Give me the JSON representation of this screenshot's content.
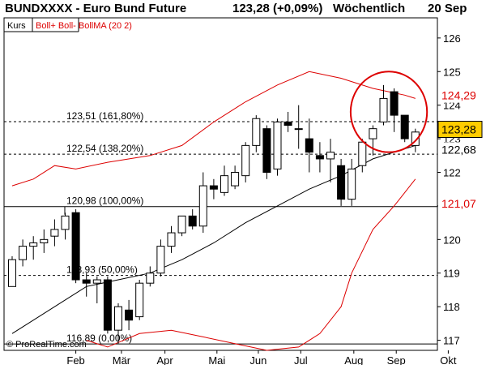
{
  "header": {
    "symbol": "BUNDXXXX - Euro Bund Future",
    "price_change": "123,28 (+0,09%)",
    "period": "Wöchentlich",
    "date": "20 Sep"
  },
  "legend": {
    "kurs": "Kurs",
    "boll": "Boll+ Boll- BollMA (20 2)"
  },
  "watermark": "© ProRealTime.com",
  "colors": {
    "candle": "#000000",
    "up_fill": "#ffffff",
    "down_fill": "#000000",
    "bollinger_band": "#dd0000",
    "bollinger_ma": "#000000",
    "highlight_ellipse": "#dd0000",
    "price_tag_bg": "#ffcc00"
  },
  "chart_data": {
    "type": "candlestick",
    "ylim": [
      116.7,
      126.6
    ],
    "y_ticks": [
      117,
      118,
      119,
      120,
      121,
      122,
      123,
      124,
      125,
      126
    ],
    "x_labels": [
      {
        "label": "Feb",
        "week": 7
      },
      {
        "label": "Mär",
        "week": 11.3
      },
      {
        "label": "Apr",
        "week": 15.4
      },
      {
        "label": "Mai",
        "week": 20.3
      },
      {
        "label": "Jun",
        "week": 24.2
      },
      {
        "label": "Jul",
        "week": 28.2
      },
      {
        "label": "Aug",
        "week": 33.2
      },
      {
        "label": "Sep",
        "week": 37.2
      },
      {
        "label": "Okt",
        "week": 42.1
      }
    ],
    "candles": [
      {
        "w": 1,
        "o": 118.6,
        "h": 119.5,
        "l": 118.6,
        "c": 119.4
      },
      {
        "w": 2,
        "o": 119.4,
        "h": 120.0,
        "l": 119.2,
        "c": 119.8
      },
      {
        "w": 3,
        "o": 119.8,
        "h": 120.1,
        "l": 119.4,
        "c": 119.9
      },
      {
        "w": 4,
        "o": 119.9,
        "h": 120.3,
        "l": 119.6,
        "c": 120.0
      },
      {
        "w": 5,
        "o": 120.1,
        "h": 120.6,
        "l": 119.8,
        "c": 120.3
      },
      {
        "w": 6,
        "o": 120.3,
        "h": 120.8,
        "l": 120.0,
        "c": 120.7
      },
      {
        "w": 7,
        "o": 120.8,
        "h": 120.9,
        "l": 118.7,
        "c": 118.8
      },
      {
        "w": 8,
        "o": 118.8,
        "h": 119.0,
        "l": 118.3,
        "c": 118.7
      },
      {
        "w": 9,
        "o": 118.7,
        "h": 118.9,
        "l": 118.1,
        "c": 118.8
      },
      {
        "w": 10,
        "o": 118.8,
        "h": 118.9,
        "l": 117.2,
        "c": 117.3
      },
      {
        "w": 11,
        "o": 117.3,
        "h": 118.1,
        "l": 116.9,
        "c": 118.0
      },
      {
        "w": 12,
        "o": 117.9,
        "h": 118.2,
        "l": 117.3,
        "c": 117.6
      },
      {
        "w": 13,
        "o": 117.7,
        "h": 118.8,
        "l": 117.6,
        "c": 118.7
      },
      {
        "w": 14,
        "o": 118.7,
        "h": 119.2,
        "l": 118.6,
        "c": 119.0
      },
      {
        "w": 15,
        "o": 119.0,
        "h": 120.0,
        "l": 118.9,
        "c": 119.8
      },
      {
        "w": 16,
        "o": 119.8,
        "h": 120.4,
        "l": 119.6,
        "c": 120.2
      },
      {
        "w": 17,
        "o": 120.2,
        "h": 120.7,
        "l": 120.1,
        "c": 120.7
      },
      {
        "w": 18,
        "o": 120.7,
        "h": 120.9,
        "l": 120.3,
        "c": 120.4
      },
      {
        "w": 19,
        "o": 120.4,
        "h": 122.0,
        "l": 120.2,
        "c": 121.6
      },
      {
        "w": 20,
        "o": 121.6,
        "h": 121.8,
        "l": 121.2,
        "c": 121.5
      },
      {
        "w": 21,
        "o": 121.4,
        "h": 122.2,
        "l": 121.3,
        "c": 121.9
      },
      {
        "w": 22,
        "o": 121.6,
        "h": 122.2,
        "l": 121.5,
        "c": 122.0
      },
      {
        "w": 23,
        "o": 121.9,
        "h": 122.9,
        "l": 121.7,
        "c": 122.8
      },
      {
        "w": 24,
        "o": 122.8,
        "h": 123.7,
        "l": 122.6,
        "c": 123.6
      },
      {
        "w": 25,
        "o": 123.3,
        "h": 123.4,
        "l": 121.8,
        "c": 122.0
      },
      {
        "w": 26,
        "o": 122.1,
        "h": 123.6,
        "l": 121.9,
        "c": 123.5
      },
      {
        "w": 27,
        "o": 123.5,
        "h": 123.8,
        "l": 123.2,
        "c": 123.4
      },
      {
        "w": 28,
        "o": 123.3,
        "h": 124.0,
        "l": 122.7,
        "c": 123.3
      },
      {
        "w": 29,
        "o": 123.0,
        "h": 123.6,
        "l": 122.0,
        "c": 122.6
      },
      {
        "w": 30,
        "o": 122.5,
        "h": 122.9,
        "l": 122.0,
        "c": 122.4
      },
      {
        "w": 31,
        "o": 122.4,
        "h": 123.0,
        "l": 121.7,
        "c": 122.6
      },
      {
        "w": 32,
        "o": 122.2,
        "h": 122.4,
        "l": 121.0,
        "c": 121.2
      },
      {
        "w": 33,
        "o": 121.2,
        "h": 122.4,
        "l": 121.0,
        "c": 122.1
      },
      {
        "w": 34,
        "o": 122.2,
        "h": 123.0,
        "l": 122.0,
        "c": 122.9
      },
      {
        "w": 35,
        "o": 123.0,
        "h": 123.4,
        "l": 122.5,
        "c": 123.3
      },
      {
        "w": 36,
        "o": 123.5,
        "h": 124.6,
        "l": 123.4,
        "c": 124.2
      },
      {
        "w": 37,
        "o": 124.4,
        "h": 124.5,
        "l": 123.2,
        "c": 123.7
      },
      {
        "w": 38,
        "o": 123.7,
        "h": 123.7,
        "l": 122.9,
        "c": 123.0
      },
      {
        "w": 39,
        "o": 122.8,
        "h": 123.3,
        "l": 122.6,
        "c": 123.2
      }
    ],
    "bollinger_upper": [
      [
        1,
        121.6
      ],
      [
        3,
        121.8
      ],
      [
        5,
        122.2
      ],
      [
        7,
        122.1
      ],
      [
        10,
        122.3
      ],
      [
        14,
        122.5
      ],
      [
        17,
        122.8
      ],
      [
        20,
        123.5
      ],
      [
        23,
        124.1
      ],
      [
        26,
        124.6
      ],
      [
        29,
        125.0
      ],
      [
        32,
        124.8
      ],
      [
        35,
        124.5
      ],
      [
        38,
        124.3
      ],
      [
        39,
        124.2
      ]
    ],
    "bollinger_ma": [
      [
        1,
        117.2
      ],
      [
        5,
        118.0
      ],
      [
        8,
        118.6
      ],
      [
        11,
        118.8
      ],
      [
        14,
        119.0
      ],
      [
        17,
        119.4
      ],
      [
        20,
        119.9
      ],
      [
        23,
        120.5
      ],
      [
        26,
        121.0
      ],
      [
        29,
        121.5
      ],
      [
        32,
        121.9
      ],
      [
        35,
        122.4
      ],
      [
        38,
        122.7
      ],
      [
        39,
        122.8
      ]
    ],
    "bollinger_lower": [
      [
        8,
        117.0
      ],
      [
        10,
        116.8
      ],
      [
        13,
        117.2
      ],
      [
        16,
        117.3
      ],
      [
        19,
        117.1
      ],
      [
        22,
        116.9
      ],
      [
        25,
        116.7
      ],
      [
        28,
        116.8
      ],
      [
        30,
        117.2
      ],
      [
        32,
        118.0
      ],
      [
        33,
        119.0
      ],
      [
        35,
        120.3
      ],
      [
        37,
        121.0
      ],
      [
        38,
        121.4
      ],
      [
        39,
        121.8
      ]
    ],
    "fib_levels": [
      {
        "value": 123.51,
        "label": "123,51 (161,80%)",
        "style": "dashed"
      },
      {
        "value": 122.54,
        "label": "122,54 (138,20%)",
        "style": "dashed"
      },
      {
        "value": 120.98,
        "label": "120,98 (100,00%)",
        "style": "solid"
      },
      {
        "value": 118.93,
        "label": "118,93 (50,00%)",
        "style": "dashed"
      },
      {
        "value": 116.89,
        "label": "116,89 (0,00%)",
        "style": "solid"
      }
    ],
    "price_tags": [
      {
        "value": 124.29,
        "label": "124,29",
        "color": "#dd0000",
        "highlight": false
      },
      {
        "value": 123.28,
        "label": "123,28",
        "color": "#000000",
        "highlight": true
      },
      {
        "value": 122.68,
        "label": "122,68",
        "color": "#000000",
        "highlight": false
      },
      {
        "value": 121.07,
        "label": "121,07",
        "color": "#dd0000",
        "highlight": false
      }
    ],
    "highlight_ellipse": {
      "center_week": 36.5,
      "center_value": 123.8,
      "radius_weeks": 3.6,
      "radius_value": 1.2
    }
  }
}
